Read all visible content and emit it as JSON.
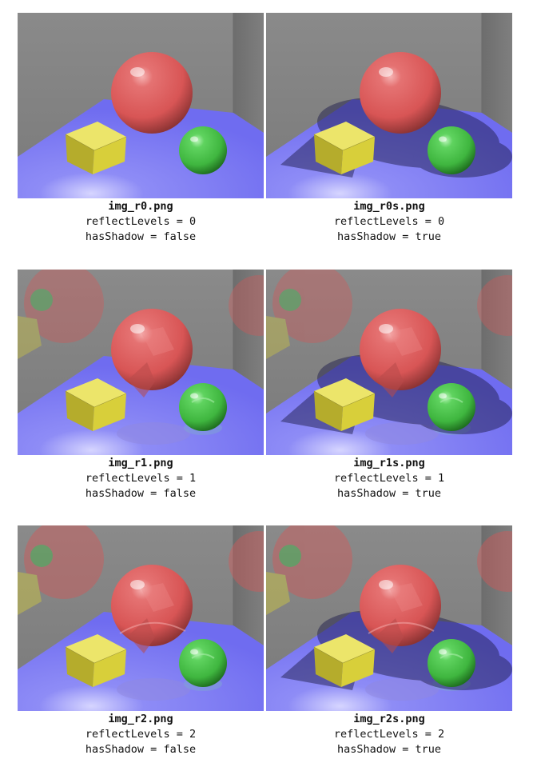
{
  "figures": [
    {
      "filename": "img_r0.png",
      "reflect_line": "reflectLevels = 0",
      "shadow_line": "hasShadow = false",
      "reflect_levels": 0,
      "has_shadow": false
    },
    {
      "filename": "img_r0s.png",
      "reflect_line": "reflectLevels = 0",
      "shadow_line": "hasShadow = true",
      "reflect_levels": 0,
      "has_shadow": true
    },
    {
      "filename": "img_r1.png",
      "reflect_line": "reflectLevels = 1",
      "shadow_line": "hasShadow = false",
      "reflect_levels": 1,
      "has_shadow": false
    },
    {
      "filename": "img_r1s.png",
      "reflect_line": "reflectLevels = 1",
      "shadow_line": "hasShadow = true",
      "reflect_levels": 1,
      "has_shadow": true
    },
    {
      "filename": "img_r2.png",
      "reflect_line": "reflectLevels = 2",
      "shadow_line": "hasShadow = false",
      "reflect_levels": 2,
      "has_shadow": false
    },
    {
      "filename": "img_r2s.png",
      "reflect_line": "reflectLevels = 2",
      "shadow_line": "hasShadow = true",
      "reflect_levels": 2,
      "has_shadow": true
    }
  ],
  "colors": {
    "floor": "#6f6cf0",
    "wall": "#7a7a7a",
    "red_sphere": "#d85555",
    "green_sphere": "#3fb63f",
    "yellow_cube": "#d8cf3a",
    "shadow": "#1e1c4a"
  }
}
